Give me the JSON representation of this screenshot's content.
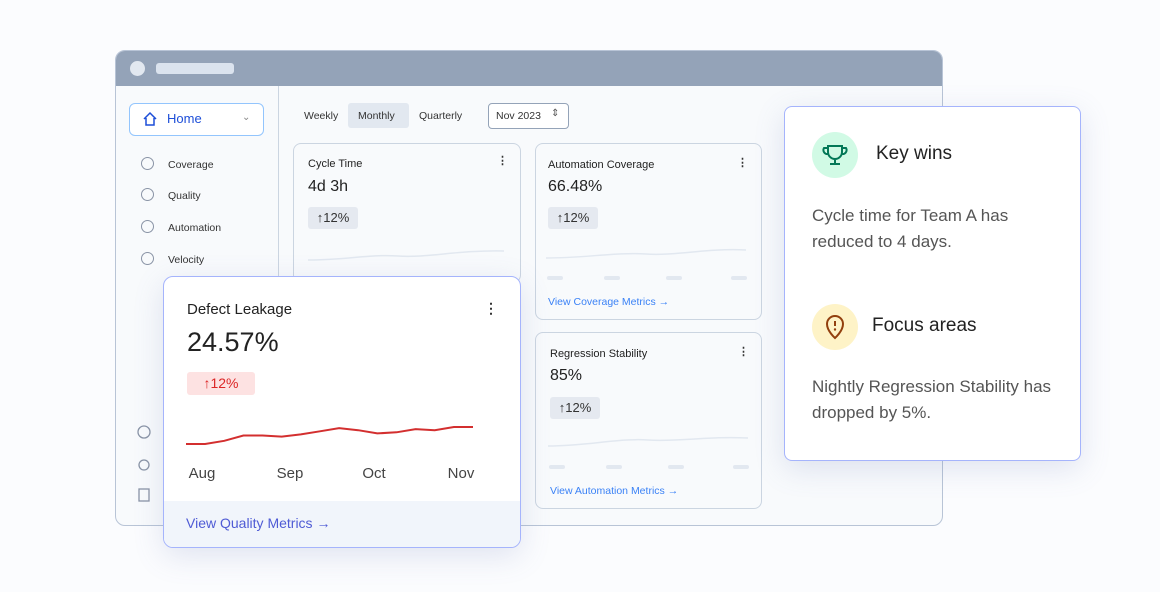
{
  "sidebar": {
    "home": "Home",
    "items": [
      "Coverage",
      "Quality",
      "Automation",
      "Velocity"
    ]
  },
  "toolbar": {
    "tabs": [
      "Weekly",
      "Monthly",
      "Quarterly"
    ],
    "selected": 1,
    "period": "Nov 2023"
  },
  "cards": [
    {
      "title": "Cycle Time",
      "value": "4d 3h",
      "change": "↑12%"
    },
    {
      "title": "Automation Coverage",
      "value": "66.48%",
      "change": "↑12%",
      "link": "View Coverage Metrics →"
    },
    {
      "title": "Regression Stability",
      "value": "85%",
      "change": "↑12%",
      "link": "View Automation Metrics →"
    }
  ],
  "focus_card": {
    "title": "Defect Leakage",
    "value": "24.57%",
    "change": "↑12%",
    "chart": {
      "x_labels": [
        "Aug",
        "Sep",
        "Oct",
        "Nov"
      ],
      "values": [
        0,
        0,
        3,
        8,
        8,
        7,
        9,
        12,
        15,
        13,
        10,
        11,
        14,
        13,
        16,
        16
      ]
    },
    "link": "View Quality Metrics →"
  },
  "insights": [
    {
      "title": "Key wins",
      "text": "Cycle time for Team A has reduced to 4 days."
    },
    {
      "title": "Focus areas",
      "text": "Nightly Regression Stability has dropped by 5%."
    }
  ]
}
